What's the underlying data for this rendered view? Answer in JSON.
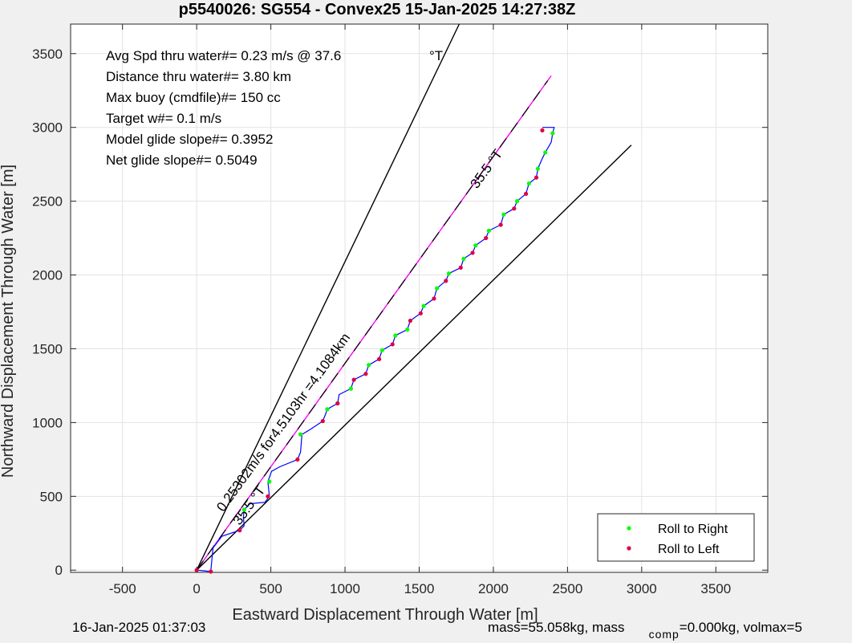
{
  "chart_data": {
    "type": "scatter",
    "title": "p5540026: SG554 - Convex25 15-Jan-2025 14:27:38Z",
    "xlabel": "Eastward Displacement Through Water [m]",
    "ylabel": "Northward Displacement Through Water [m]",
    "xlim": [
      -850,
      3850
    ],
    "ylim": [
      -15,
      3700
    ],
    "xticks": [
      -500,
      0,
      500,
      1000,
      1500,
      2000,
      2500,
      3000,
      3500
    ],
    "yticks": [
      0,
      500,
      1000,
      1500,
      2000,
      2500,
      3000,
      3500
    ],
    "grid": true,
    "legend_position": "bottom-right",
    "info_lines": [
      "Avg Spd thru water#=  0.23 m/s @  37.6",
      "Distance thru water#=  3.80 km",
      "Max buoy (cmdfile)#= 150 cc",
      "Target w#= 0.1 m/s",
      "Model glide slope#= 0.3952",
      "Net glide slope#= 0.5049"
    ],
    "info_unit": "°T",
    "bearing_lines": [
      {
        "name": "upper bound",
        "points": [
          [
            0,
            0
          ],
          [
            1770,
            3700
          ]
        ]
      },
      {
        "name": "lower bound",
        "points": [
          [
            0,
            0
          ],
          [
            2930,
            2880
          ]
        ]
      },
      {
        "name": "course projection",
        "points": [
          [
            0,
            0
          ],
          [
            2390,
            3350
          ]
        ]
      }
    ],
    "track": [
      [
        0,
        0
      ],
      [
        95,
        -10
      ],
      [
        110,
        150
      ],
      [
        170,
        230
      ],
      [
        290,
        270
      ],
      [
        320,
        300
      ],
      [
        315,
        360
      ],
      [
        320,
        410
      ],
      [
        360,
        450
      ],
      [
        460,
        460
      ],
      [
        490,
        500
      ],
      [
        480,
        600
      ],
      [
        505,
        670
      ],
      [
        560,
        700
      ],
      [
        680,
        750
      ],
      [
        700,
        800
      ],
      [
        710,
        920
      ],
      [
        760,
        950
      ],
      [
        850,
        1010
      ],
      [
        870,
        1060
      ],
      [
        880,
        1090
      ],
      [
        950,
        1130
      ],
      [
        960,
        1190
      ],
      [
        1040,
        1230
      ],
      [
        1060,
        1290
      ],
      [
        1140,
        1330
      ],
      [
        1160,
        1390
      ],
      [
        1230,
        1430
      ],
      [
        1250,
        1490
      ],
      [
        1320,
        1530
      ],
      [
        1340,
        1590
      ],
      [
        1420,
        1630
      ],
      [
        1440,
        1690
      ],
      [
        1510,
        1740
      ],
      [
        1530,
        1790
      ],
      [
        1600,
        1840
      ],
      [
        1620,
        1910
      ],
      [
        1680,
        1960
      ],
      [
        1700,
        2010
      ],
      [
        1780,
        2050
      ],
      [
        1800,
        2110
      ],
      [
        1860,
        2150
      ],
      [
        1880,
        2200
      ],
      [
        1950,
        2250
      ],
      [
        1970,
        2300
      ],
      [
        2050,
        2340
      ],
      [
        2070,
        2410
      ],
      [
        2140,
        2450
      ],
      [
        2160,
        2500
      ],
      [
        2220,
        2550
      ],
      [
        2240,
        2620
      ],
      [
        2290,
        2660
      ],
      [
        2300,
        2720
      ],
      [
        2330,
        2790
      ],
      [
        2350,
        2830
      ],
      [
        2390,
        2900
      ],
      [
        2400,
        2960
      ],
      [
        2410,
        3000
      ],
      [
        2330,
        3000
      ]
    ],
    "annotations": [
      {
        "text": "0.25302m/s for4.5103hr =4.1084km",
        "x": 180,
        "y": 390,
        "angle_deg": -54
      },
      {
        "text": "35.5 °T",
        "x": 290,
        "y": 300,
        "angle_deg": -54
      },
      {
        "text": "35.5 °T",
        "x": 1890,
        "y": 2580,
        "angle_deg": -54
      }
    ],
    "series": [
      {
        "name": "Roll to Right",
        "color": "#00ff00",
        "x": [
          320,
          490,
          700,
          880,
          950,
          1040,
          1160,
          1250,
          1340,
          1420,
          1530,
          1620,
          1700,
          1800,
          1880,
          1970,
          2070,
          2160,
          2240,
          2300,
          2350,
          2400
        ],
        "y": [
          410,
          600,
          920,
          1090,
          1130,
          1230,
          1390,
          1490,
          1590,
          1630,
          1790,
          1910,
          2010,
          2110,
          2200,
          2300,
          2410,
          2500,
          2620,
          2720,
          2830,
          2960
        ]
      },
      {
        "name": "Roll to Left",
        "color": "#e00040",
        "x": [
          0,
          95,
          290,
          480,
          680,
          850,
          950,
          1060,
          1140,
          1230,
          1320,
          1440,
          1510,
          1600,
          1680,
          1780,
          1860,
          1950,
          2050,
          2140,
          2220,
          2290,
          2330
        ],
        "y": [
          0,
          -10,
          270,
          500,
          750,
          1010,
          1130,
          1290,
          1330,
          1430,
          1530,
          1690,
          1740,
          1840,
          1960,
          2050,
          2150,
          2250,
          2340,
          2450,
          2550,
          2660,
          2980
        ]
      }
    ]
  },
  "footer": {
    "timestamp": "16-Jan-2025 01:37:03",
    "mass_text_a": "mass=55.058kg, mass",
    "mass_sub": "comp",
    "mass_text_b": "=0.000kg, volmax=5"
  }
}
